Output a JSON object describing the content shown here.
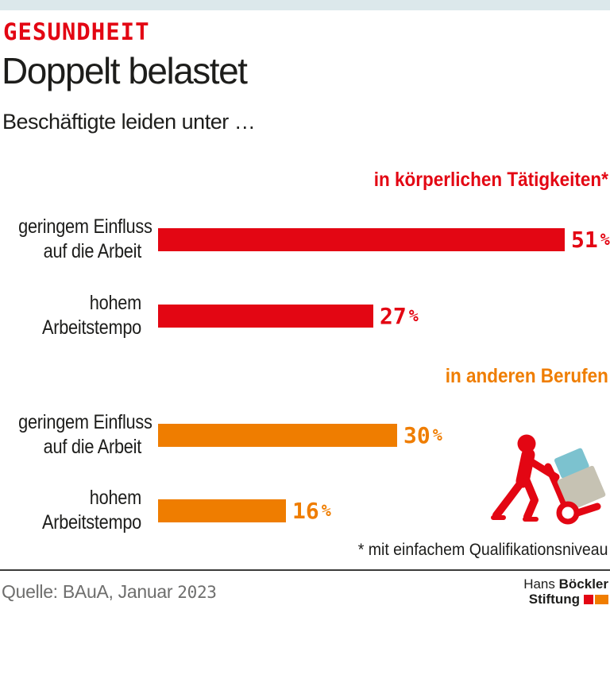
{
  "page": {
    "kicker": "GESUNDHEIT",
    "title": "Doppelt belastet",
    "subtitle": "Beschäftigte leiden unter …",
    "footnote": "* mit einfachem Qualifikationsniveau",
    "source_prefix": "Quelle: BAuA, Januar",
    "source_year": "2023",
    "logo": {
      "name_regular": "Hans",
      "name_bold": "Böckler",
      "line2": "Stiftung"
    }
  },
  "colors": {
    "brand_red": "#e30613",
    "brand_orange": "#ef7d00",
    "top_strip": "#dce8eb",
    "text_dark": "#1d1d1b",
    "source_gray": "#6e6e6d",
    "icon_box_teal": "#7cc2cf",
    "icon_box_beige": "#c6c2b3"
  },
  "chart_data": {
    "type": "bar",
    "orientation": "horizontal",
    "title": "Doppelt belastet",
    "subtitle": "Beschäftigte leiden unter …",
    "unit": "%",
    "xlim": [
      0,
      51
    ],
    "axes_visible": false,
    "legend_position": "none",
    "groups": [
      {
        "header": "in körperlichen Tätigkeiten*",
        "color": "#e30613",
        "bars": [
          {
            "label": "geringem Einfluss auf die Arbeit",
            "label_lines": [
              "geringem Einfluss",
              "auf die Arbeit"
            ],
            "value": 51
          },
          {
            "label": "hohem Arbeitstempo",
            "label_lines": [
              "hohem",
              "Arbeitstempo"
            ],
            "value": 27
          }
        ]
      },
      {
        "header": "in anderen Berufen",
        "color": "#ef7d00",
        "bars": [
          {
            "label": "geringem Einfluss auf die Arbeit",
            "label_lines": [
              "geringem Einfluss",
              "auf die Arbeit"
            ],
            "value": 30
          },
          {
            "label": "hohem Arbeitstempo",
            "label_lines": [
              "hohem",
              "Arbeitstempo"
            ],
            "value": 16
          }
        ]
      }
    ],
    "footnote": "* mit einfachem Qualifikationsniveau",
    "icon": "worker-pushing-hand-truck"
  }
}
